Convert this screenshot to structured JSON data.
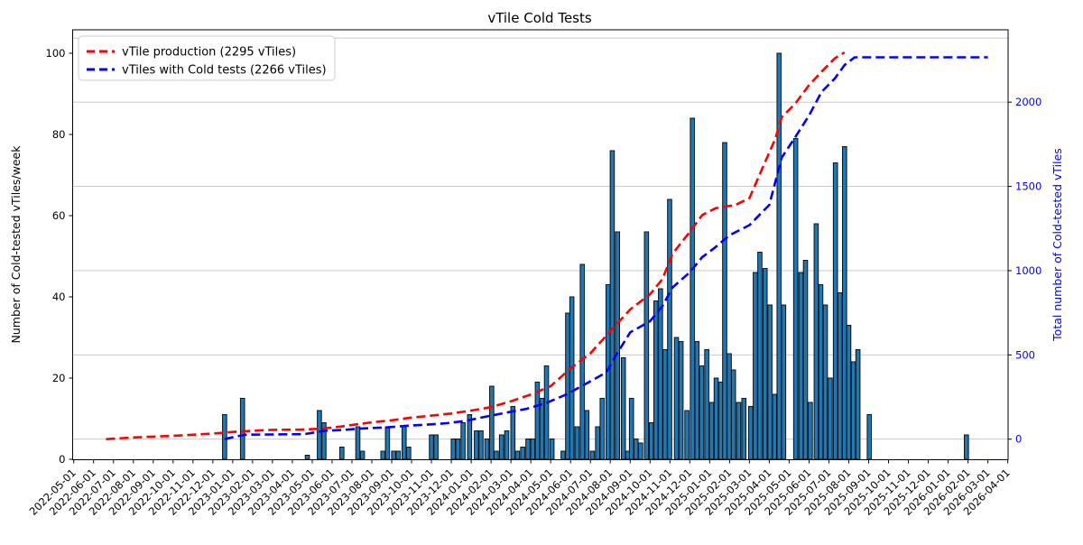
{
  "figure": {
    "title": "vTile Cold Tests"
  },
  "legend": {
    "items": [
      {
        "label": "vTile production (2295 vTiles)",
        "color": "#ff0000",
        "style": "dashed"
      },
      {
        "label": "vTiles with Cold tests (2266 vTiles)",
        "color": "#0000ff",
        "style": "dashed"
      }
    ]
  },
  "axes": {
    "left": {
      "label": "Number of Cold-tested vTiles/week",
      "ticks": [
        0,
        20,
        40,
        60,
        80,
        100
      ],
      "color": "#000000"
    },
    "right": {
      "label": "Total number of Cold-tested vTiles",
      "ticks": [
        0,
        500,
        1000,
        1500,
        2000
      ],
      "gridlines": [
        0,
        500,
        1000,
        1500,
        2000,
        2380
      ],
      "color": "#0000ff"
    },
    "x": {
      "tick_labels": [
        "2022-05-01",
        "2022-06-01",
        "2022-07-01",
        "2022-08-01",
        "2022-09-01",
        "2022-10-01",
        "2022-11-01",
        "2022-12-01",
        "2023-01-01",
        "2023-02-01",
        "2023-03-01",
        "2023-04-01",
        "2023-05-01",
        "2023-06-01",
        "2023-07-01",
        "2023-08-01",
        "2023-09-01",
        "2023-10-01",
        "2023-11-01",
        "2023-12-01",
        "2024-01-01",
        "2024-02-01",
        "2024-03-01",
        "2024-04-01",
        "2024-05-01",
        "2024-06-01",
        "2024-07-01",
        "2024-08-01",
        "2024-09-01",
        "2024-10-01",
        "2024-11-01",
        "2024-12-01",
        "2025-01-01",
        "2025-02-01",
        "2025-03-01",
        "2025-04-01",
        "2025-05-01",
        "2025-06-01",
        "2025-07-01",
        "2025-08-01",
        "2025-09-01",
        "2025-10-01",
        "2025-11-01",
        "2025-12-01",
        "2026-01-01",
        "2026-02-01",
        "2026-03-01",
        "2026-04-01"
      ]
    }
  },
  "chart_data": {
    "type": "bar",
    "title": "vTile Cold Tests",
    "xlabel": "",
    "ylabel_left": "Number of Cold-tested vTiles/week",
    "ylabel_right": "Total number of Cold-tested vTiles",
    "ylim_left": [
      0,
      105
    ],
    "grid": "right-axis horizontal",
    "legend_position": "upper left",
    "bars": {
      "name": "Cold-tested vTiles per week",
      "color": "#1f77b4",
      "edge_color": "#111111",
      "points": [
        [
          "2022-12-19",
          11
        ],
        [
          "2023-01-16",
          15
        ],
        [
          "2023-04-24",
          1
        ],
        [
          "2023-05-12",
          12
        ],
        [
          "2023-05-19",
          9
        ],
        [
          "2023-06-16",
          3
        ],
        [
          "2023-07-10",
          8
        ],
        [
          "2023-07-17",
          2
        ],
        [
          "2023-08-18",
          2
        ],
        [
          "2023-08-25",
          8
        ],
        [
          "2023-09-04",
          2
        ],
        [
          "2023-09-11",
          2
        ],
        [
          "2023-09-20",
          8
        ],
        [
          "2023-09-27",
          3
        ],
        [
          "2023-11-01",
          6
        ],
        [
          "2023-11-08",
          6
        ],
        [
          "2023-12-04",
          5
        ],
        [
          "2023-12-11",
          5
        ],
        [
          "2023-12-19",
          9
        ],
        [
          "2023-12-29",
          11
        ],
        [
          "2024-01-09",
          7
        ],
        [
          "2024-01-16",
          7
        ],
        [
          "2024-01-25",
          5
        ],
        [
          "2024-02-02",
          18
        ],
        [
          "2024-02-09",
          2
        ],
        [
          "2024-02-17",
          6
        ],
        [
          "2024-02-25",
          7
        ],
        [
          "2024-03-04",
          13
        ],
        [
          "2024-03-11",
          2
        ],
        [
          "2024-03-19",
          3
        ],
        [
          "2024-03-27",
          5
        ],
        [
          "2024-04-04",
          5
        ],
        [
          "2024-04-11",
          19
        ],
        [
          "2024-04-18",
          15
        ],
        [
          "2024-04-25",
          23
        ],
        [
          "2024-05-03",
          5
        ],
        [
          "2024-05-20",
          2
        ],
        [
          "2024-05-27",
          36
        ],
        [
          "2024-06-03",
          40
        ],
        [
          "2024-06-11",
          8
        ],
        [
          "2024-06-19",
          48
        ],
        [
          "2024-06-26",
          12
        ],
        [
          "2024-07-04",
          2
        ],
        [
          "2024-07-12",
          8
        ],
        [
          "2024-07-19",
          15
        ],
        [
          "2024-07-28",
          43
        ],
        [
          "2024-08-04",
          76
        ],
        [
          "2024-08-12",
          56
        ],
        [
          "2024-08-21",
          25
        ],
        [
          "2024-08-28",
          2
        ],
        [
          "2024-09-03",
          15
        ],
        [
          "2024-09-10",
          5
        ],
        [
          "2024-09-17",
          4
        ],
        [
          "2024-09-26",
          56
        ],
        [
          "2024-10-03",
          9
        ],
        [
          "2024-10-10",
          39
        ],
        [
          "2024-10-17",
          42
        ],
        [
          "2024-10-24",
          27
        ],
        [
          "2024-10-31",
          64
        ],
        [
          "2024-11-11",
          30
        ],
        [
          "2024-11-18",
          29
        ],
        [
          "2024-11-27",
          12
        ],
        [
          "2024-12-05",
          84
        ],
        [
          "2024-12-12",
          29
        ],
        [
          "2024-12-19",
          23
        ],
        [
          "2024-12-27",
          27
        ],
        [
          "2025-01-04",
          14
        ],
        [
          "2025-01-11",
          20
        ],
        [
          "2025-01-18",
          19
        ],
        [
          "2025-01-24",
          78
        ],
        [
          "2025-01-31",
          26
        ],
        [
          "2025-02-07",
          22
        ],
        [
          "2025-02-15",
          14
        ],
        [
          "2025-02-23",
          15
        ],
        [
          "2025-03-03",
          13
        ],
        [
          "2025-03-10",
          46
        ],
        [
          "2025-03-17",
          51
        ],
        [
          "2025-03-25",
          47
        ],
        [
          "2025-04-02",
          38
        ],
        [
          "2025-04-09",
          16
        ],
        [
          "2025-04-16",
          100
        ],
        [
          "2025-04-23",
          38
        ],
        [
          "2025-05-11",
          79
        ],
        [
          "2025-05-19",
          46
        ],
        [
          "2025-05-26",
          49
        ],
        [
          "2025-06-03",
          14
        ],
        [
          "2025-06-12",
          58
        ],
        [
          "2025-06-19",
          43
        ],
        [
          "2025-06-26",
          38
        ],
        [
          "2025-07-03",
          20
        ],
        [
          "2025-07-11",
          73
        ],
        [
          "2025-07-18",
          41
        ],
        [
          "2025-07-25",
          77
        ],
        [
          "2025-08-01",
          33
        ],
        [
          "2025-08-08",
          24
        ],
        [
          "2025-08-15",
          27
        ],
        [
          "2025-09-02",
          11
        ],
        [
          "2026-01-29",
          6
        ]
      ]
    },
    "lines": [
      {
        "name": "vTile production (2295 vTiles)",
        "color": "#ff0000",
        "style": "dashed",
        "axis": "right",
        "total": 2295,
        "points": [
          [
            "2022-06-20",
            0
          ],
          [
            "2022-08-01",
            10
          ],
          [
            "2022-10-01",
            20
          ],
          [
            "2022-12-01",
            33
          ],
          [
            "2023-01-01",
            43
          ],
          [
            "2023-02-01",
            50
          ],
          [
            "2023-03-01",
            55
          ],
          [
            "2023-04-15",
            57
          ],
          [
            "2023-05-15",
            62
          ],
          [
            "2023-06-15",
            75
          ],
          [
            "2023-08-01",
            100
          ],
          [
            "2023-09-01",
            112
          ],
          [
            "2023-10-01",
            128
          ],
          [
            "2023-11-01",
            140
          ],
          [
            "2023-12-01",
            152
          ],
          [
            "2024-01-01",
            170
          ],
          [
            "2024-02-01",
            190
          ],
          [
            "2024-03-01",
            225
          ],
          [
            "2024-04-01",
            265
          ],
          [
            "2024-05-01",
            315
          ],
          [
            "2024-06-01",
            420
          ],
          [
            "2024-07-01",
            510
          ],
          [
            "2024-08-01",
            640
          ],
          [
            "2024-09-01",
            770
          ],
          [
            "2024-10-01",
            860
          ],
          [
            "2024-10-20",
            950
          ],
          [
            "2024-11-05",
            1100
          ],
          [
            "2024-12-01",
            1230
          ],
          [
            "2024-12-20",
            1330
          ],
          [
            "2025-01-10",
            1370
          ],
          [
            "2025-02-10",
            1390
          ],
          [
            "2025-03-01",
            1430
          ],
          [
            "2025-03-20",
            1600
          ],
          [
            "2025-04-10",
            1780
          ],
          [
            "2025-04-20",
            1910
          ],
          [
            "2025-05-10",
            1990
          ],
          [
            "2025-06-01",
            2100
          ],
          [
            "2025-06-20",
            2180
          ],
          [
            "2025-07-10",
            2260
          ],
          [
            "2025-07-25",
            2295
          ]
        ]
      },
      {
        "name": "vTiles with Cold tests (2266 vTiles)",
        "color": "#0000ff",
        "style": "dashed",
        "axis": "right",
        "total": 2266,
        "points": [
          [
            "2022-12-19",
            0
          ],
          [
            "2023-01-05",
            15
          ],
          [
            "2023-01-20",
            26
          ],
          [
            "2023-03-01",
            28
          ],
          [
            "2023-04-20",
            30
          ],
          [
            "2023-05-20",
            50
          ],
          [
            "2023-06-20",
            55
          ],
          [
            "2023-07-15",
            63
          ],
          [
            "2023-08-25",
            70
          ],
          [
            "2023-09-25",
            80
          ],
          [
            "2023-10-25",
            86
          ],
          [
            "2023-11-25",
            95
          ],
          [
            "2023-12-25",
            110
          ],
          [
            "2024-01-25",
            135
          ],
          [
            "2024-02-25",
            158
          ],
          [
            "2024-03-25",
            180
          ],
          [
            "2024-04-25",
            215
          ],
          [
            "2024-05-25",
            265
          ],
          [
            "2024-06-25",
            330
          ],
          [
            "2024-07-25",
            395
          ],
          [
            "2024-08-10",
            500
          ],
          [
            "2024-09-01",
            634
          ],
          [
            "2024-10-01",
            700
          ],
          [
            "2024-10-20",
            790
          ],
          [
            "2024-11-05",
            900
          ],
          [
            "2024-12-01",
            990
          ],
          [
            "2024-12-20",
            1080
          ],
          [
            "2025-01-10",
            1140
          ],
          [
            "2025-02-01",
            1210
          ],
          [
            "2025-03-01",
            1270
          ],
          [
            "2025-04-01",
            1390
          ],
          [
            "2025-04-20",
            1670
          ],
          [
            "2025-05-10",
            1790
          ],
          [
            "2025-06-01",
            1920
          ],
          [
            "2025-06-20",
            2060
          ],
          [
            "2025-07-10",
            2140
          ],
          [
            "2025-07-25",
            2220
          ],
          [
            "2025-08-10",
            2266
          ],
          [
            "2026-03-01",
            2266
          ]
        ]
      }
    ]
  }
}
